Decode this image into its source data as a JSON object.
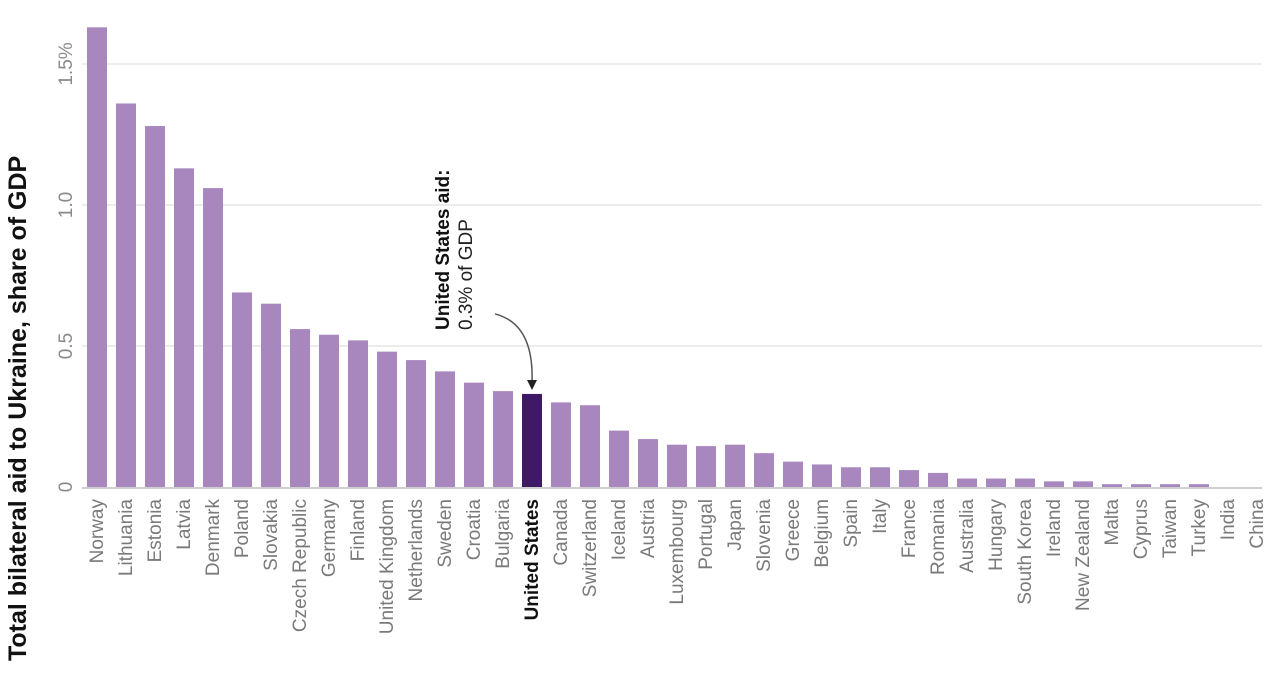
{
  "chart_data": {
    "type": "bar",
    "title": "",
    "xlabel": "",
    "ylabel": "Total bilateral aid to Ukraine, share of GDP",
    "ylim": [
      0,
      1.6
    ],
    "yticks": [
      {
        "value": 0,
        "label": "0"
      },
      {
        "value": 0.5,
        "label": "0.5"
      },
      {
        "value": 1.0,
        "label": "1.0"
      },
      {
        "value": 1.5,
        "label": "1.5%"
      }
    ],
    "grid": true,
    "categories": [
      "Norway",
      "Lithuania",
      "Estonia",
      "Latvia",
      "Denmark",
      "Poland",
      "Slovakia",
      "Czech Republic",
      "Germany",
      "Finland",
      "United Kingdom",
      "Netherlands",
      "Sweden",
      "Croatia",
      "Bulgaria",
      "United States",
      "Canada",
      "Switzerland",
      "Iceland",
      "Austria",
      "Luxembourg",
      "Portugal",
      "Japan",
      "Slovenia",
      "Greece",
      "Belgium",
      "Spain",
      "Italy",
      "France",
      "Romania",
      "Australia",
      "Hungary",
      "South Korea",
      "Ireland",
      "New Zealand",
      "Malta",
      "Cyprus",
      "Taiwan",
      "Turkey",
      "India",
      "China"
    ],
    "values": [
      1.63,
      1.36,
      1.28,
      1.13,
      1.06,
      0.69,
      0.65,
      0.56,
      0.54,
      0.52,
      0.48,
      0.45,
      0.41,
      0.37,
      0.34,
      0.33,
      0.3,
      0.29,
      0.2,
      0.17,
      0.15,
      0.145,
      0.15,
      0.12,
      0.09,
      0.08,
      0.07,
      0.07,
      0.06,
      0.05,
      0.03,
      0.03,
      0.03,
      0.02,
      0.02,
      0.01,
      0.01,
      0.01,
      0.01,
      0.0,
      0.0
    ],
    "highlight": "United States",
    "colors": {
      "bar": "#a887bf",
      "highlight": "#3f1866",
      "grid": "#e6e6e6",
      "axis": "#cfcfcf"
    },
    "annotation": {
      "target": "United States",
      "title": "United States aid:",
      "text": "0.3% of GDP"
    }
  }
}
